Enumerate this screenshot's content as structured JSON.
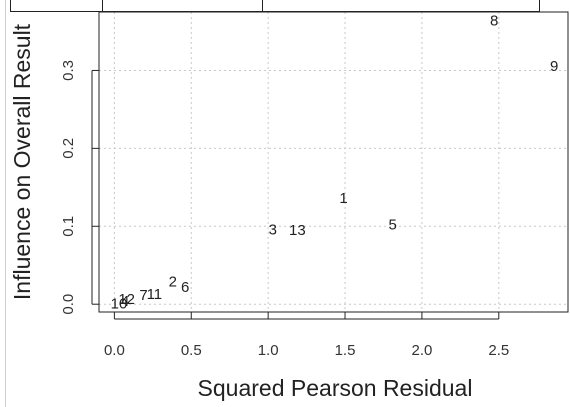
{
  "chart_data": {
    "type": "scatter",
    "title": "",
    "xlabel": "Squared Pearson Residual",
    "ylabel": "Influence on Overall Result",
    "xlim": [
      -0.1,
      2.95
    ],
    "ylim": [
      -0.01,
      0.375
    ],
    "x_ticks": [
      "0.0",
      "0.5",
      "1.0",
      "1.5",
      "2.0",
      "2.5"
    ],
    "y_ticks": [
      "0.0",
      "0.1",
      "0.2",
      "0.3"
    ],
    "x_tick_values": [
      0,
      0.5,
      1.0,
      1.5,
      2.0,
      2.5
    ],
    "y_tick_values": [
      0,
      0.1,
      0.2,
      0.3
    ],
    "grid": true,
    "points": [
      {
        "label": "1",
        "x": 1.49,
        "y": 0.136
      },
      {
        "label": "2",
        "x": 0.38,
        "y": 0.029
      },
      {
        "label": "3",
        "x": 1.03,
        "y": 0.096
      },
      {
        "label": "4",
        "x": 0.07,
        "y": 0.004
      },
      {
        "label": "5",
        "x": 1.81,
        "y": 0.102
      },
      {
        "label": "6",
        "x": 0.46,
        "y": 0.022
      },
      {
        "label": "7",
        "x": 0.19,
        "y": 0.012
      },
      {
        "label": "8",
        "x": 2.47,
        "y": 0.364
      },
      {
        "label": "9",
        "x": 2.86,
        "y": 0.306
      },
      {
        "label": "10",
        "x": 0.03,
        "y": 0.001
      },
      {
        "label": "11",
        "x": 0.26,
        "y": 0.013
      },
      {
        "label": "12",
        "x": 0.08,
        "y": 0.007
      },
      {
        "label": "13",
        "x": 1.19,
        "y": 0.095
      }
    ]
  }
}
